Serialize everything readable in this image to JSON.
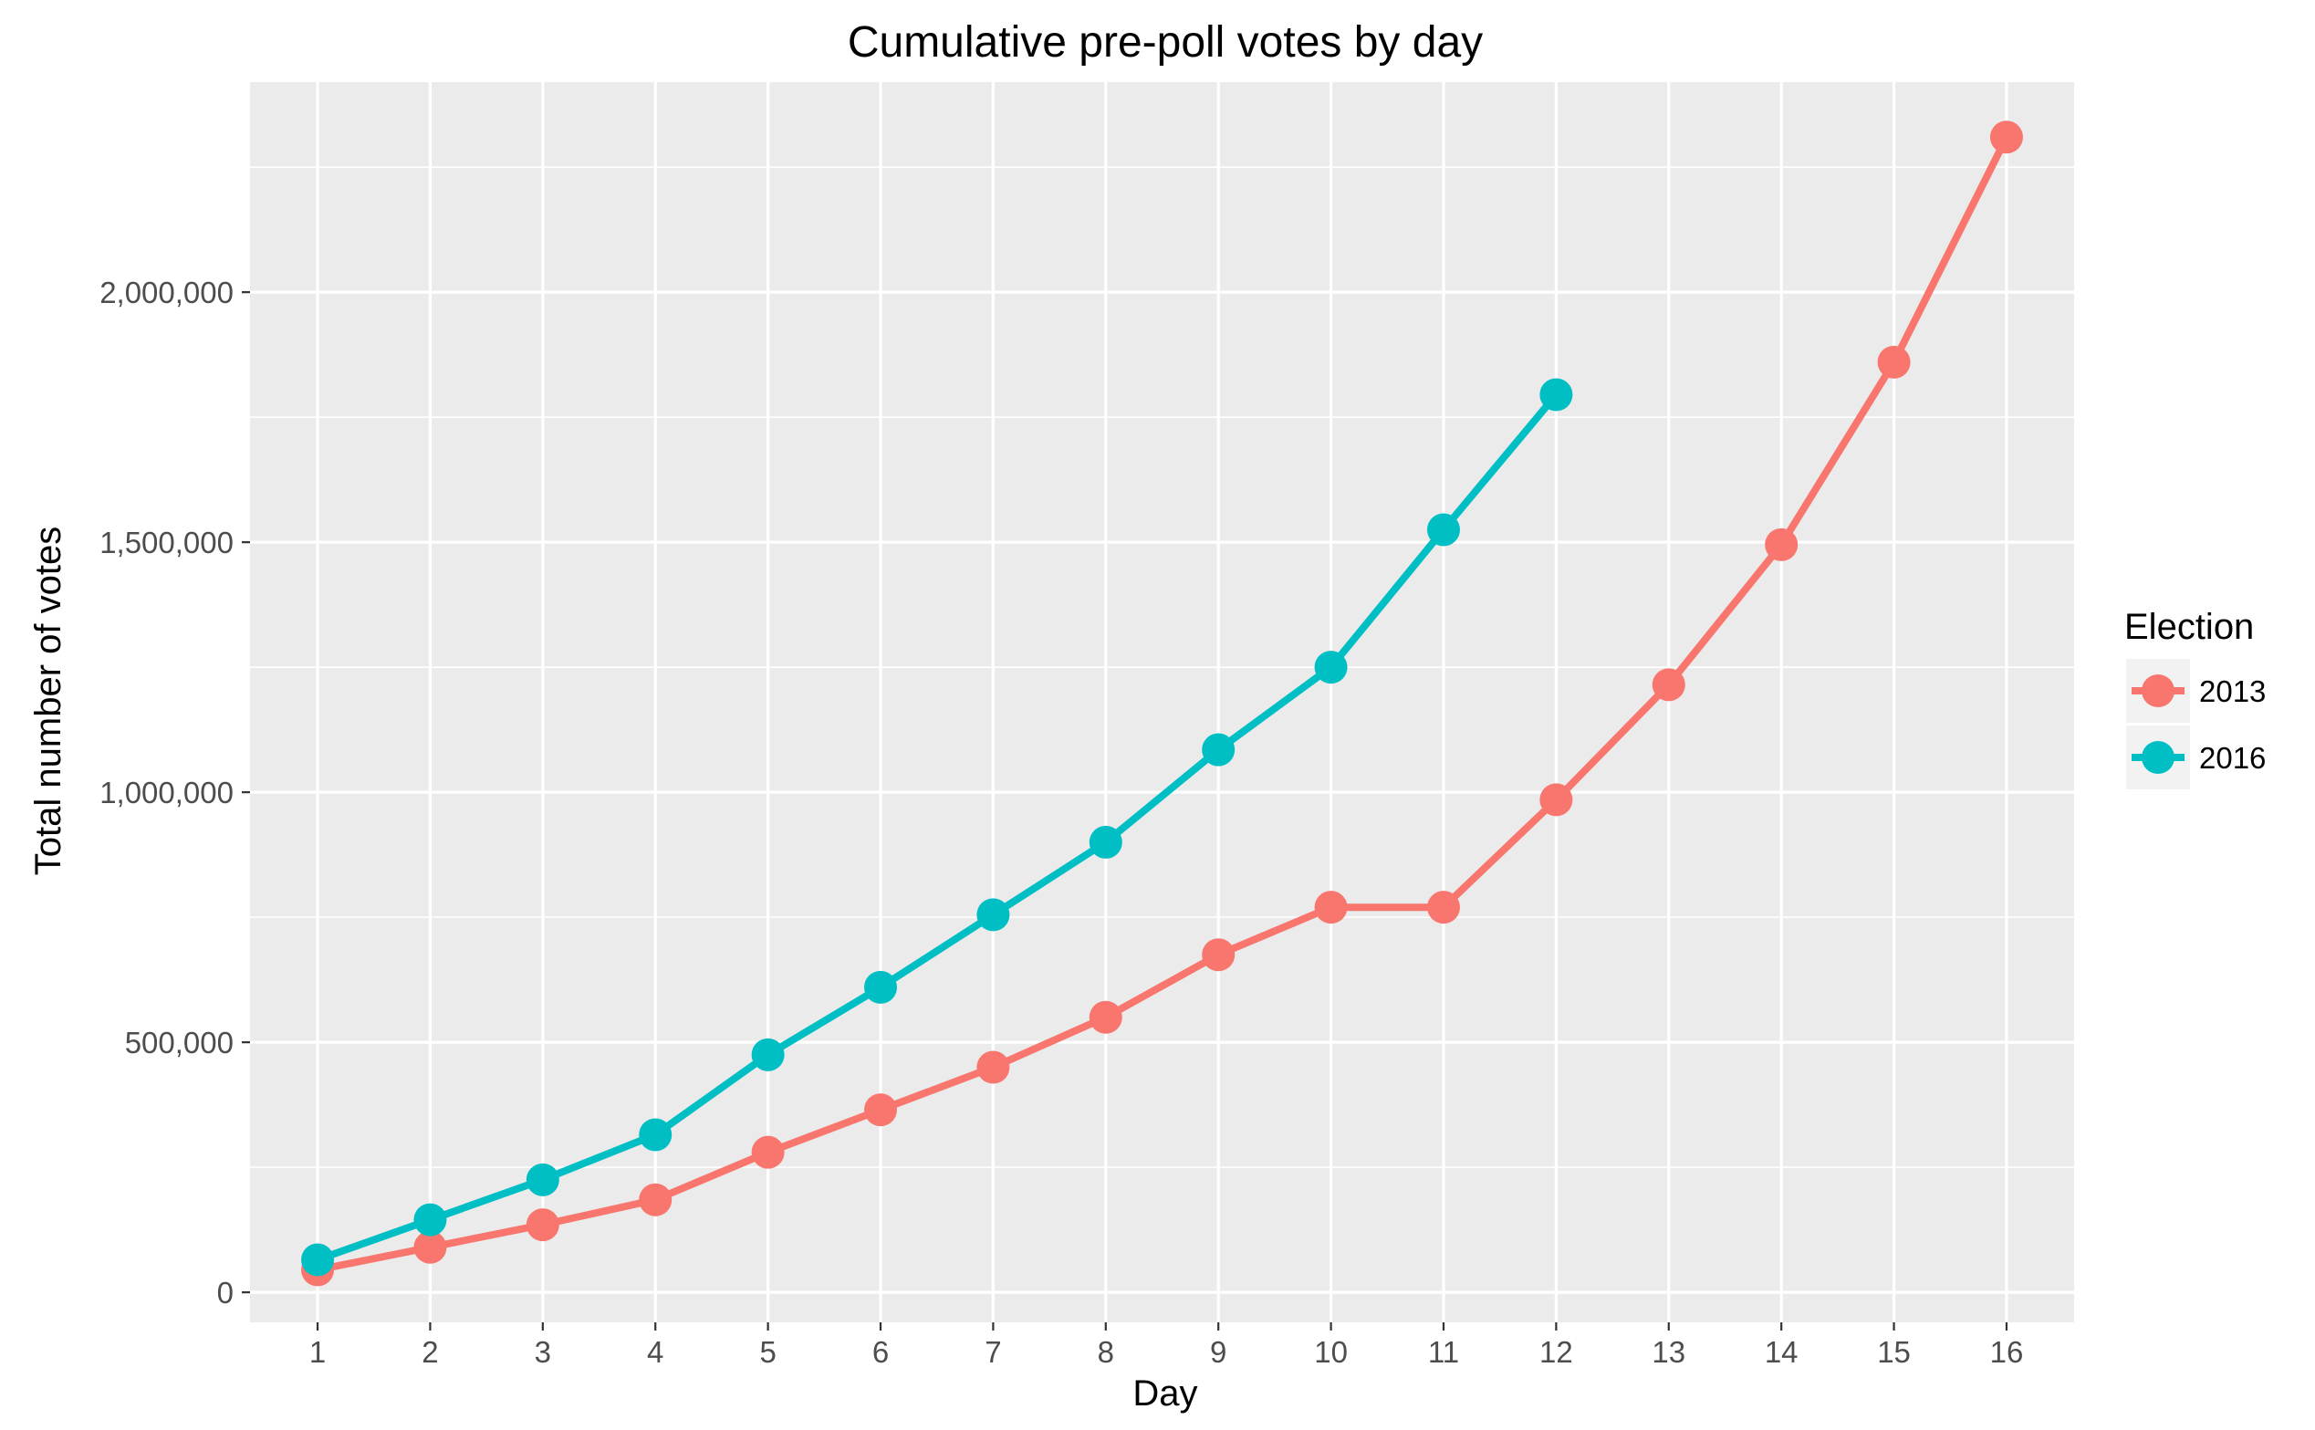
{
  "chart_data": {
    "type": "line",
    "title": "Cumulative pre-poll votes by day",
    "xlabel": "Day",
    "ylabel": "Total number of votes",
    "x": [
      1,
      2,
      3,
      4,
      5,
      6,
      7,
      8,
      9,
      10,
      11,
      12,
      13,
      14,
      15,
      16
    ],
    "x_tick_labels": [
      "1",
      "2",
      "3",
      "4",
      "5",
      "6",
      "7",
      "8",
      "9",
      "10",
      "11",
      "12",
      "13",
      "14",
      "15",
      "16"
    ],
    "xlim": [
      0.4,
      16.6
    ],
    "y_ticks": [
      0,
      500000,
      1000000,
      1500000,
      2000000
    ],
    "y_tick_labels": [
      "0",
      "500,000",
      "1,000,000",
      "1,500,000",
      "2,000,000"
    ],
    "ylim": [
      -60000,
      2420000
    ],
    "grid": true,
    "legend": {
      "title": "Election",
      "position": "right"
    },
    "series": [
      {
        "name": "2013",
        "color": "#F8766D",
        "x": [
          1,
          2,
          3,
          4,
          5,
          6,
          7,
          8,
          9,
          10,
          11,
          12,
          13,
          14,
          15,
          16
        ],
        "values": [
          45000,
          90000,
          135000,
          185000,
          280000,
          365000,
          450000,
          550000,
          675000,
          770000,
          770000,
          985000,
          1215000,
          1495000,
          1860000,
          2310000
        ]
      },
      {
        "name": "2016",
        "color": "#00BFC4",
        "x": [
          1,
          2,
          3,
          4,
          5,
          6,
          7,
          8,
          9,
          10,
          11,
          12
        ],
        "values": [
          65000,
          145000,
          225000,
          315000,
          475000,
          610000,
          755000,
          900000,
          1085000,
          1250000,
          1525000,
          1795000
        ]
      }
    ]
  }
}
